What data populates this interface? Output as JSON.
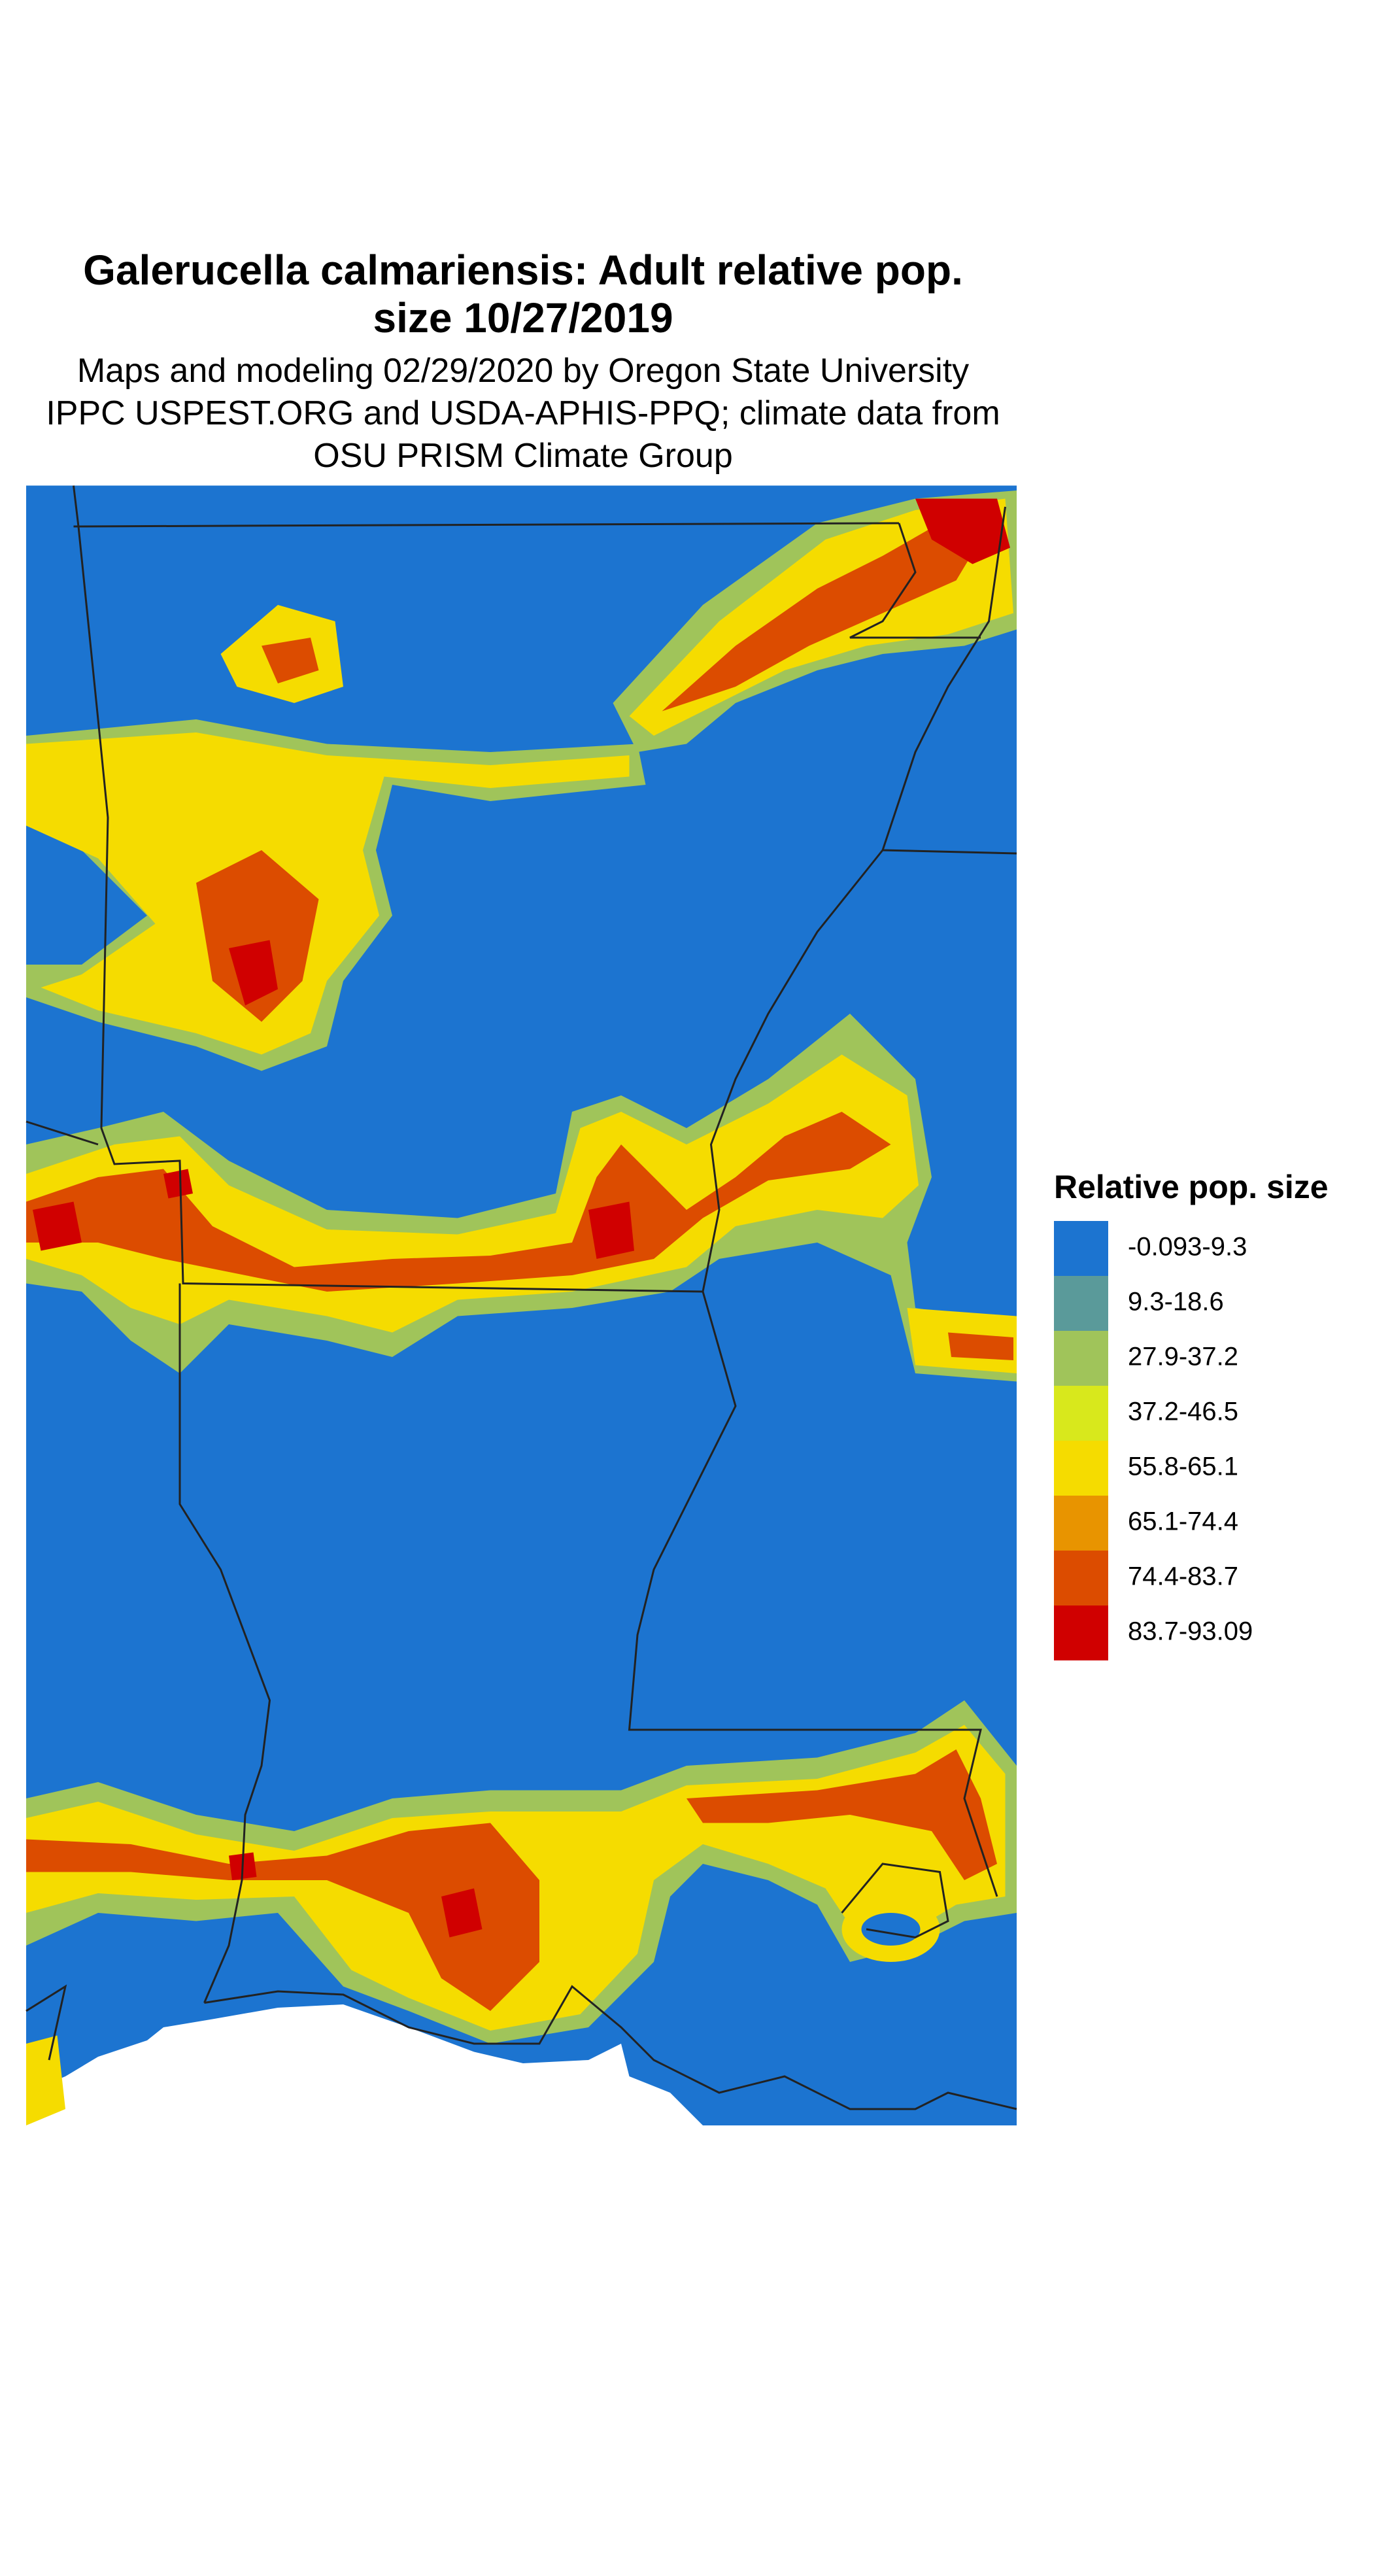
{
  "header": {
    "title": [
      "Galerucella calmariensis: Adult relative pop.",
      "size 10/27/2019"
    ],
    "subtitle": [
      "Maps and modeling 02/29/2020 by Oregon State University",
      "IPPC USPEST.ORG and USDA-APHIS-PPQ; climate data from",
      "OSU PRISM Climate Group"
    ]
  },
  "legend": {
    "title": "Relative pop. size",
    "entries": [
      {
        "label": "-0.093-9.3",
        "color": "#1c74d0"
      },
      {
        "label": "9.3-18.6",
        "color": "#5a9a9a"
      },
      {
        "label": "27.9-37.2",
        "color": "#a0c45a"
      },
      {
        "label": "37.2-46.5",
        "color": "#d8e81c"
      },
      {
        "label": "55.8-65.1",
        "color": "#f5dc00"
      },
      {
        "label": "65.1-74.4",
        "color": "#e89400"
      },
      {
        "label": "74.4-83.7",
        "color": "#dc4c00"
      },
      {
        "label": "83.7-93.09",
        "color": "#d00000"
      }
    ]
  }
}
